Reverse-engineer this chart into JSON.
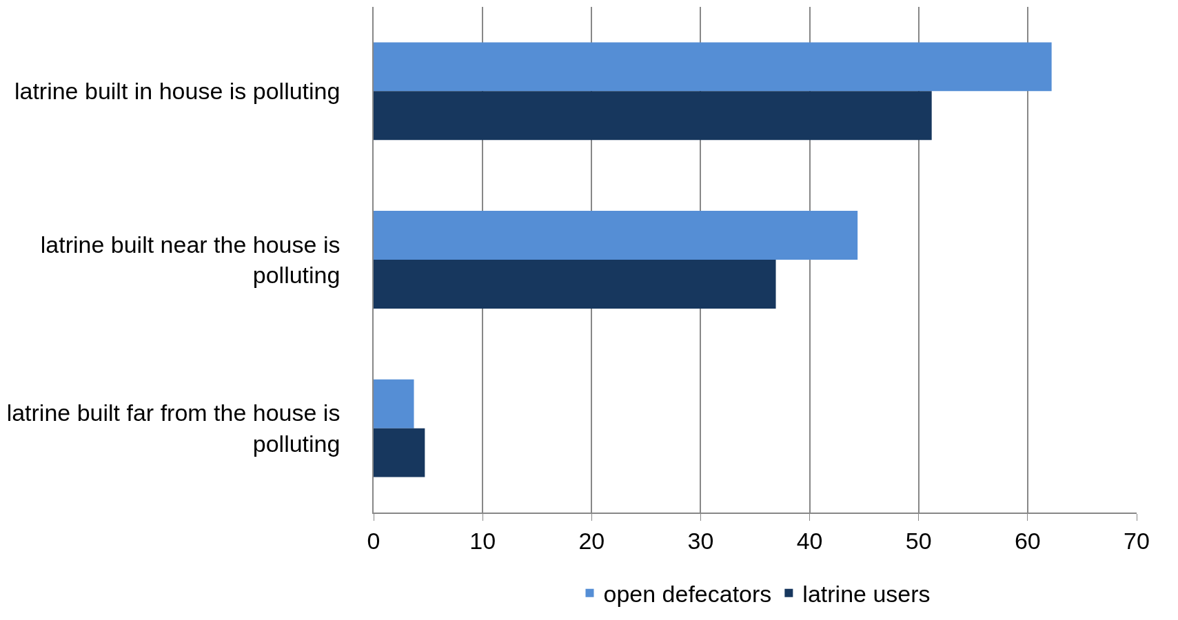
{
  "chart_data": {
    "type": "bar",
    "orientation": "horizontal",
    "categories": [
      "latrine built in house is polluting",
      "latrine built near the house is polluting",
      "latrine built far from the house is polluting"
    ],
    "series": [
      {
        "name": "open defecators",
        "color": "#558ed5",
        "values": [
          62.2,
          44.4,
          3.7
        ]
      },
      {
        "name": "latrine users",
        "color": "#17375e",
        "values": [
          51.2,
          36.9,
          4.7
        ]
      }
    ],
    "xlim": [
      0,
      70
    ],
    "xticks": [
      0,
      10,
      20,
      30,
      40,
      50,
      60,
      70
    ],
    "grid": "x",
    "legend": "bottom"
  }
}
